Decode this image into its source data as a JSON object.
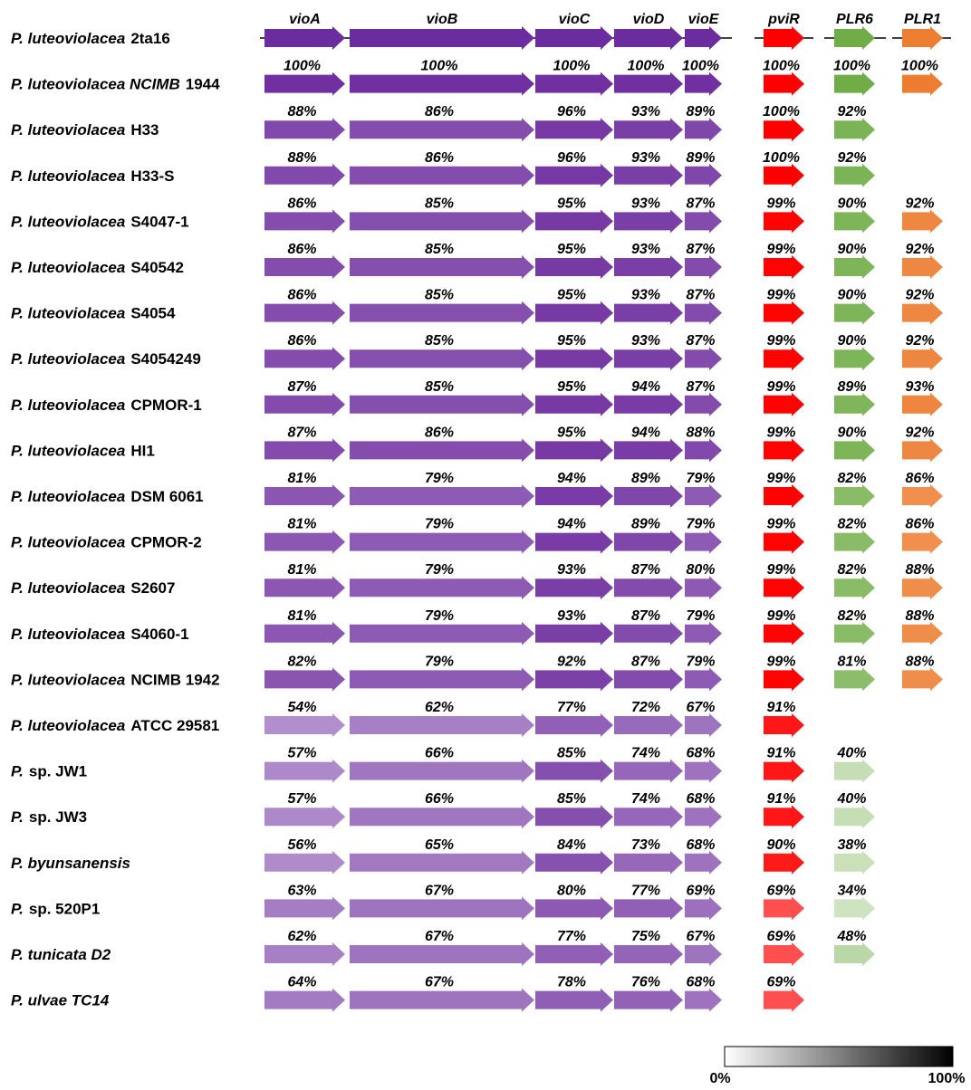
{
  "genes": [
    {
      "name": "vioA",
      "color": "#7030a0"
    },
    {
      "name": "vioB",
      "color": "#7030a0"
    },
    {
      "name": "vioC",
      "color": "#7030a0"
    },
    {
      "name": "vioD",
      "color": "#7030a0"
    },
    {
      "name": "vioE",
      "color": "#7030a0"
    },
    {
      "name": "pviR",
      "color": "#ff0000"
    },
    {
      "name": "PLR6",
      "color": "#70ad47"
    },
    {
      "name": "PLR1",
      "color": "#ed7d31"
    }
  ],
  "reference": {
    "name_italic": "P. luteoviolacea",
    "name_plain": "2ta16"
  },
  "strains": [
    {
      "name_italic": "P. luteoviolacea NCIMB",
      "name_plain": "1944",
      "identity": [
        100,
        100,
        100,
        100,
        100,
        100,
        100,
        100
      ],
      "identity_labels": [
        "100%",
        "100%",
        "100%",
        "100%",
        "100%",
        "100%",
        "100%",
        "100%"
      ]
    },
    {
      "name_italic": "P. luteoviolacea",
      "name_plain": "H33",
      "identity": [
        88,
        86,
        96,
        93,
        89,
        100,
        92,
        null
      ],
      "identity_labels": [
        "88%",
        "86%",
        "96%",
        "93%",
        "89%",
        "100%",
        "92%",
        null
      ]
    },
    {
      "name_italic": "P. luteoviolacea",
      "name_plain": "H33-S",
      "identity": [
        88,
        86,
        96,
        93,
        89,
        100,
        92,
        null
      ],
      "identity_labels": [
        "88%",
        "86%",
        "96%",
        "93%",
        "89%",
        "100%",
        "92%",
        null
      ]
    },
    {
      "name_italic": "P. luteoviolacea",
      "name_plain": "S4047-1",
      "identity": [
        86,
        85,
        95,
        93,
        87,
        99,
        90,
        92
      ],
      "identity_labels": [
        "86%",
        "85%",
        "95%",
        "93%",
        "87%",
        "99%",
        "90%",
        "92%"
      ]
    },
    {
      "name_italic": "P. luteoviolacea",
      "name_plain": "S40542",
      "identity": [
        86,
        85,
        95,
        93,
        87,
        99,
        90,
        92
      ],
      "identity_labels": [
        "86%",
        "85%",
        "95%",
        "93%",
        "87%",
        "99%",
        "90%",
        "92%"
      ]
    },
    {
      "name_italic": "P. luteoviolacea",
      "name_plain": "S4054",
      "identity": [
        86,
        85,
        95,
        93,
        87,
        99,
        90,
        92
      ],
      "identity_labels": [
        "86%",
        "85%",
        "95%",
        "93%",
        "87%",
        "99%",
        "90%",
        "92%"
      ]
    },
    {
      "name_italic": "P. luteoviolacea",
      "name_plain": "S4054249",
      "identity": [
        86,
        85,
        95,
        93,
        87,
        99,
        90,
        92
      ],
      "identity_labels": [
        "86%",
        "85%",
        "95%",
        "93%",
        "87%",
        "99%",
        "90%",
        "92%"
      ]
    },
    {
      "name_italic": "P. luteoviolacea",
      "name_plain": "CPMOR-1",
      "identity": [
        87,
        85,
        95,
        94,
        87,
        99,
        89,
        93
      ],
      "identity_labels": [
        "87%",
        "85%",
        "95%",
        "94%",
        "87%",
        "99%",
        "89%",
        "93%"
      ]
    },
    {
      "name_italic": "P. luteoviolacea",
      "name_plain": "HI1",
      "identity": [
        87,
        86,
        95,
        94,
        88,
        99,
        90,
        92
      ],
      "identity_labels": [
        "87%",
        "86%",
        "95%",
        "94%",
        "88%",
        "99%",
        "90%",
        "92%"
      ]
    },
    {
      "name_italic": "P. luteoviolacea",
      "name_plain": "DSM 6061",
      "identity": [
        81,
        79,
        94,
        89,
        79,
        99,
        82,
        86
      ],
      "identity_labels": [
        "81%",
        "79%",
        "94%",
        "89%",
        "79%",
        "99%",
        "82%",
        "86%"
      ]
    },
    {
      "name_italic": "P. luteoviolacea",
      "name_plain": "CPMOR-2",
      "identity": [
        81,
        79,
        94,
        89,
        79,
        99,
        82,
        86
      ],
      "identity_labels": [
        "81%",
        "79%",
        "94%",
        "89%",
        "79%",
        "99%",
        "82%",
        "86%"
      ]
    },
    {
      "name_italic": "P. luteoviolacea",
      "name_plain": "S2607",
      "identity": [
        81,
        79,
        93,
        87,
        80,
        99,
        82,
        88
      ],
      "identity_labels": [
        "81%",
        "79%",
        "93%",
        "87%",
        "80%",
        "99%",
        "82%",
        "88%"
      ]
    },
    {
      "name_italic": "P. luteoviolacea",
      "name_plain": "S4060-1",
      "identity": [
        81,
        79,
        93,
        87,
        79,
        99,
        82,
        88
      ],
      "identity_labels": [
        "81%",
        "79%",
        "93%",
        "87%",
        "79%",
        "99%",
        "82%",
        "88%"
      ]
    },
    {
      "name_italic": "P. luteoviolacea",
      "name_plain": "NCIMB 1942",
      "identity": [
        82,
        79,
        92,
        87,
        79,
        99,
        81,
        88
      ],
      "identity_labels": [
        "82%",
        "79%",
        "92%",
        "87%",
        "79%",
        "99%",
        "81%",
        "88%"
      ]
    },
    {
      "name_italic": "P. luteoviolacea",
      "name_plain": "ATCC 29581",
      "identity": [
        54,
        62,
        77,
        72,
        67,
        91,
        null,
        null
      ],
      "identity_labels": [
        "54%",
        "62%",
        "77%",
        "72%",
        "67%",
        "91%",
        null,
        null
      ]
    },
    {
      "name_italic": "P.",
      "name_plain": "sp. JW1",
      "identity": [
        57,
        66,
        85,
        74,
        68,
        91,
        40,
        null
      ],
      "identity_labels": [
        "57%",
        "66%",
        "85%",
        "74%",
        "68%",
        "91%",
        "40%",
        null
      ]
    },
    {
      "name_italic": "P.",
      "name_plain": "sp. JW3",
      "identity": [
        57,
        66,
        85,
        74,
        68,
        91,
        40,
        null
      ],
      "identity_labels": [
        "57%",
        "66%",
        "85%",
        "74%",
        "68%",
        "91%",
        "40%",
        null
      ]
    },
    {
      "name_italic": "P. byunsanensis",
      "identity": [
        56,
        65,
        84,
        73,
        68,
        90,
        38,
        null
      ],
      "identity_labels": [
        "56%",
        "65%",
        "84%",
        "73%",
        "68%",
        "90%",
        "38%",
        null
      ]
    },
    {
      "name_italic": "P.",
      "name_plain": "sp. 520P1",
      "identity": [
        63,
        67,
        80,
        77,
        69,
        69,
        34,
        null
      ],
      "identity_labels": [
        "63%",
        "67%",
        "80%",
        "77%",
        "69%",
        "69%",
        "34%",
        null
      ]
    },
    {
      "name_italic": "P. tunicata D2",
      "identity": [
        62,
        67,
        77,
        75,
        67,
        69,
        48,
        null
      ],
      "identity_labels": [
        "62%",
        "67%",
        "77%",
        "75%",
        "67%",
        "69%",
        "48%",
        null
      ]
    },
    {
      "name_italic": "P. ulvae TC14",
      "identity": [
        64,
        67,
        78,
        76,
        68,
        69,
        null,
        null
      ],
      "identity_labels": [
        "64%",
        "67%",
        "78%",
        "76%",
        "68%",
        "69%",
        null,
        null
      ]
    }
  ],
  "legend": {
    "min_label": "0%",
    "max_label": "100%"
  }
}
